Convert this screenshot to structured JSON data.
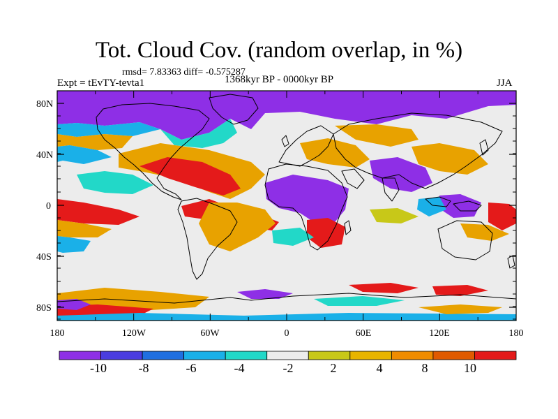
{
  "figure": {
    "title": "Tot. Cloud Cov. (random overlap, in %)",
    "stats_line": "rmsd= 7.83363 diff= -0.575287",
    "experiment": "Expt = tEvTY-tevta1",
    "period": "1368kyr BP - 0000kyr BP",
    "season": "JJA"
  },
  "axes": {
    "lat_labels": [
      "80N",
      "40N",
      "0",
      "40S",
      "80S"
    ],
    "lon_labels": [
      "180",
      "120W",
      "60W",
      "0",
      "60E",
      "120E",
      "180"
    ]
  },
  "colorbar": {
    "labels": [
      "-10",
      "-8",
      "-6",
      "-4",
      "-2",
      "2",
      "4",
      "8",
      "10"
    ],
    "colors": [
      "#8e2fe6",
      "#4a3de0",
      "#1f6fe0",
      "#1ab0e8",
      "#22d8c8",
      "#ececec",
      "#c8c818",
      "#e8b400",
      "#f08c00",
      "#e05a00",
      "#e41a1a"
    ]
  },
  "field_colors": {
    "purple": "#8e2fe6",
    "blue": "#1f6fe0",
    "cyan": "#1ab0e8",
    "teal": "#22d8c8",
    "grey": "#ececec",
    "yellow": "#c8c818",
    "orange": "#e8a200",
    "red": "#e41a1a",
    "coast": "#000000"
  }
}
